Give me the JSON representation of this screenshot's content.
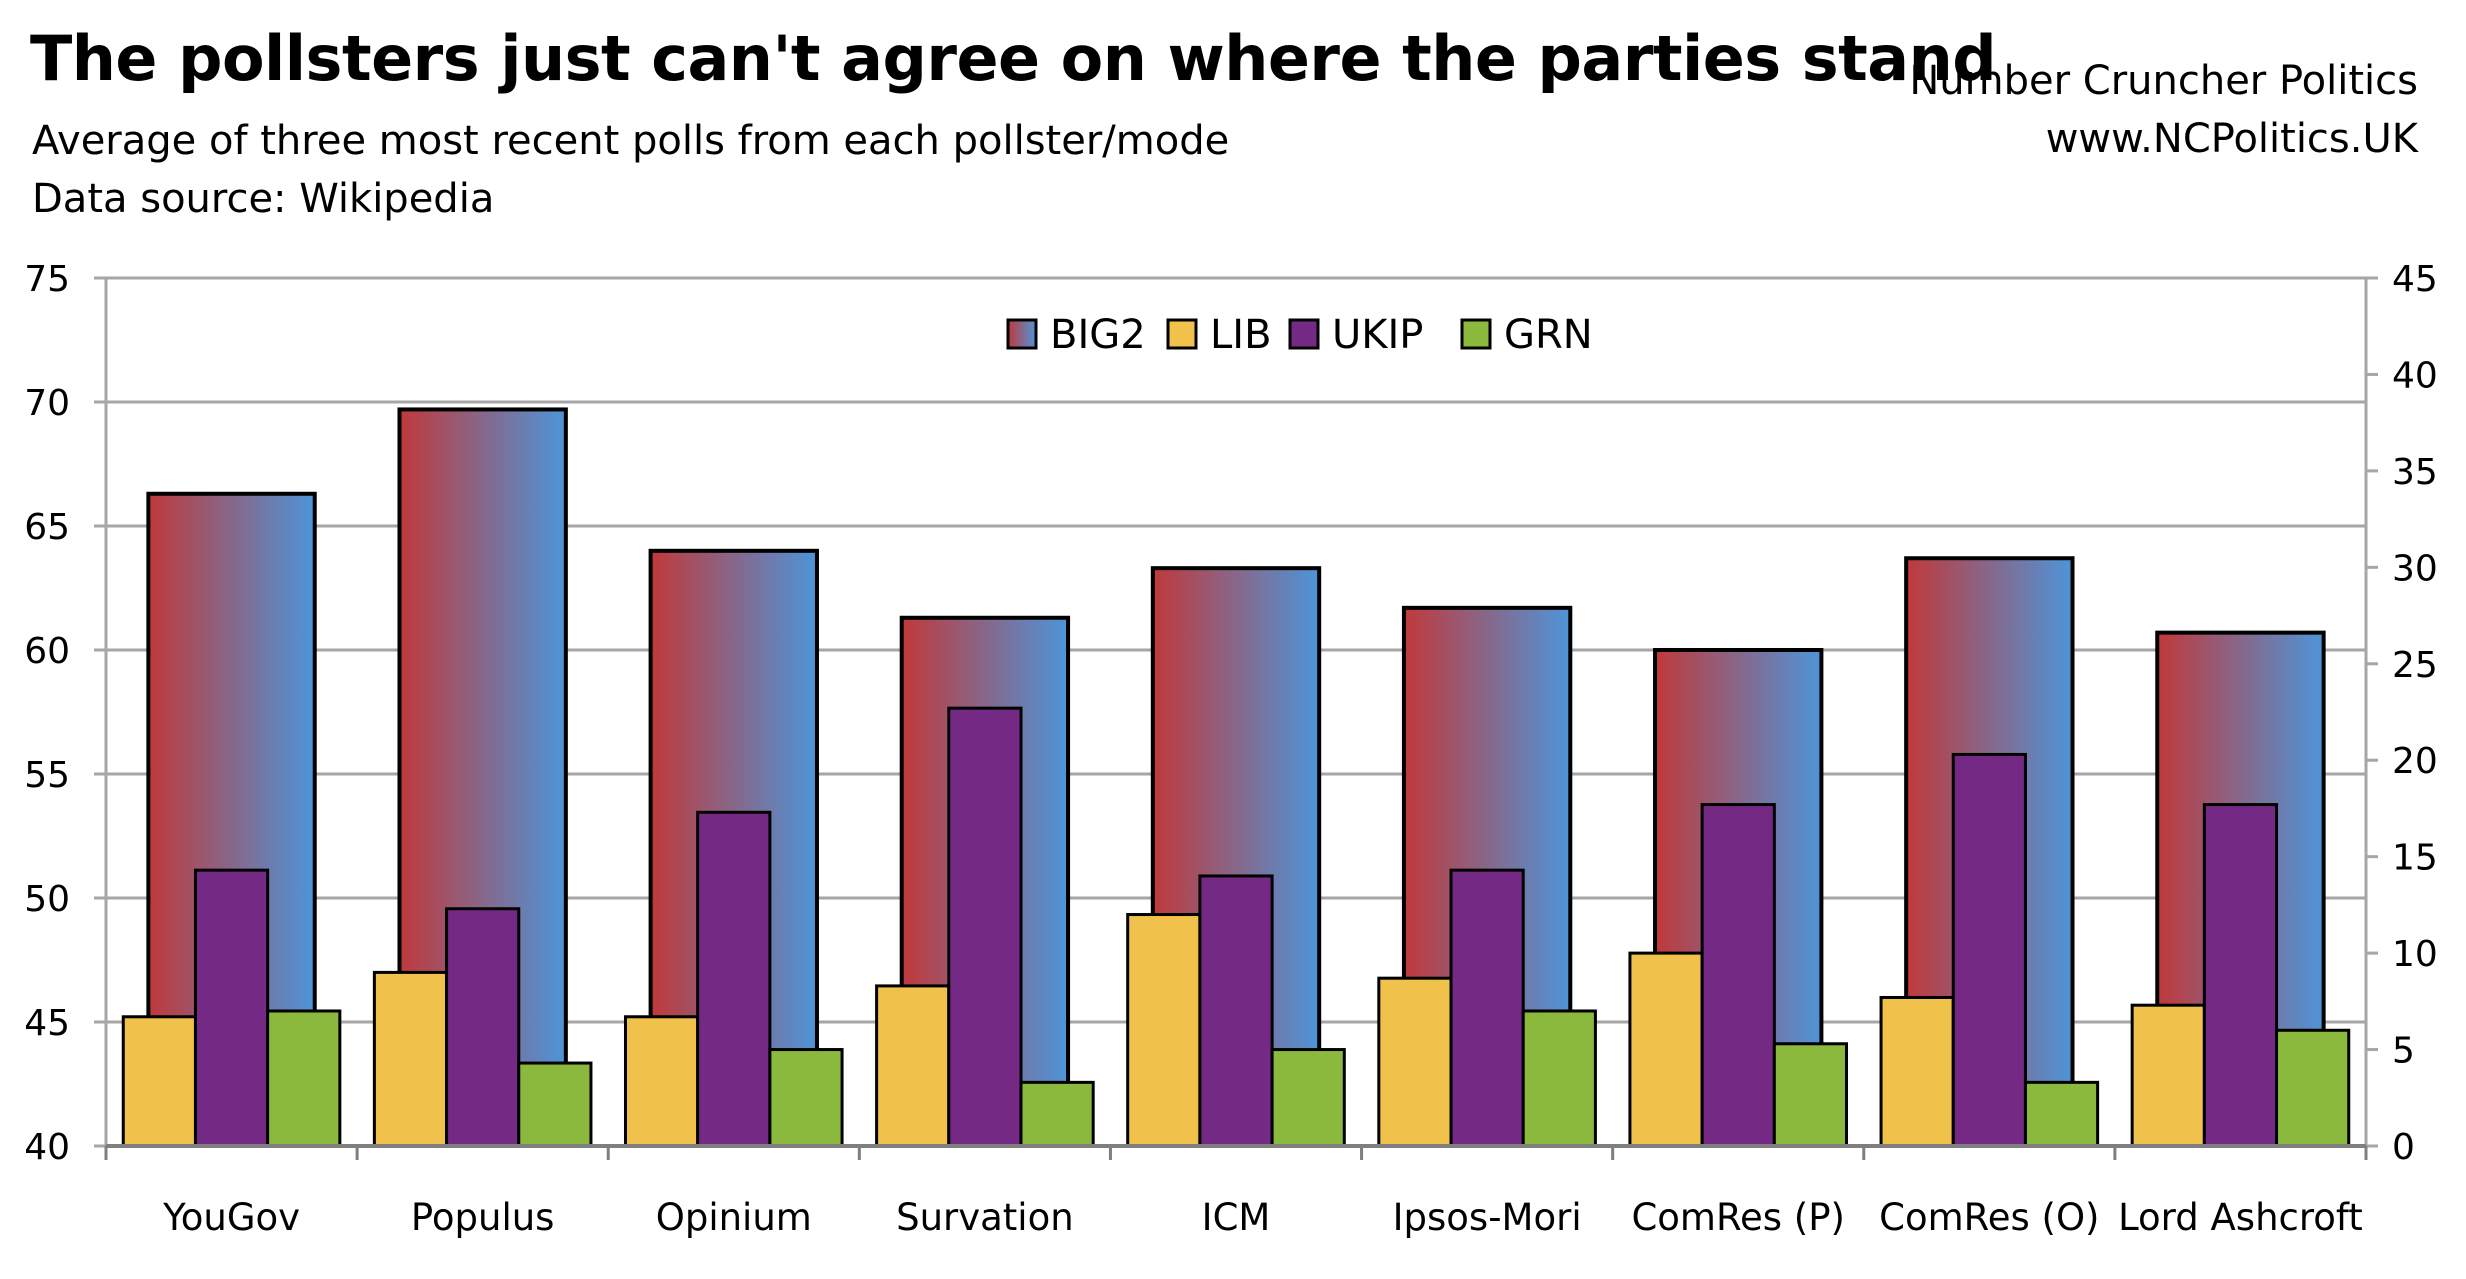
{
  "header": {
    "title": "The pollsters just can't agree on where the parties stand",
    "subtitle": "Average of three most recent polls from each pollster/mode",
    "source": "Data source: Wikipedia",
    "credit_name": "Number Cruncher Politics",
    "credit_url": "www.NCPolitics.UK"
  },
  "colors": {
    "big2_left": "#c0393b",
    "big2_right": "#4d95d9",
    "lib": "#f0c14b",
    "ukip": "#742a85",
    "grn": "#8bb93e",
    "grid": "#a6a6a6"
  },
  "chart_data": {
    "type": "bar",
    "title": "The pollsters just can't agree on where the parties stand",
    "categories": [
      "YouGov",
      "Populus",
      "Opinium",
      "Survation",
      "ICM",
      "Ipsos-Mori",
      "ComRes (P)",
      "ComRes (O)",
      "Lord Ashcroft"
    ],
    "primary_axis": {
      "ylim": [
        40,
        75
      ],
      "ticks": [
        "40",
        "45",
        "50",
        "55",
        "60",
        "65",
        "70",
        "75"
      ]
    },
    "secondary_axis": {
      "ylim": [
        0,
        45
      ],
      "ticks": [
        "0",
        "5",
        "10",
        "15",
        "20",
        "25",
        "30",
        "35",
        "40",
        "45"
      ]
    },
    "grid": true,
    "legend": {
      "placement": "top-center",
      "entries": [
        "BIG2",
        "LIB",
        "UKIP",
        "GRN"
      ]
    },
    "series": [
      {
        "name": "BIG2",
        "axis": "left",
        "values": [
          66.3,
          69.7,
          64.0,
          61.3,
          63.3,
          61.7,
          60.0,
          63.7,
          60.7
        ]
      },
      {
        "name": "LIB",
        "axis": "right",
        "values": [
          6.7,
          9.0,
          6.7,
          8.3,
          12.0,
          8.7,
          10.0,
          7.7,
          7.3
        ]
      },
      {
        "name": "UKIP",
        "axis": "right",
        "values": [
          14.3,
          12.3,
          17.3,
          22.7,
          14.0,
          14.3,
          17.7,
          20.3,
          17.7
        ]
      },
      {
        "name": "GRN",
        "axis": "right",
        "values": [
          7.0,
          4.3,
          5.0,
          3.3,
          5.0,
          7.0,
          5.3,
          3.3,
          6.0
        ]
      }
    ]
  }
}
